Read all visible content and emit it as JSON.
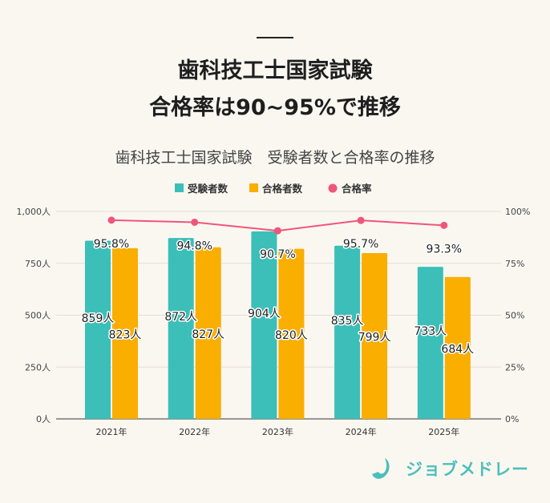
{
  "header": {
    "title_line1": "歯科技工士国家試験",
    "title_line2": "合格率は90~95%で推移"
  },
  "chart_data": {
    "type": "bar+line",
    "title": "歯科技工士国家試験　受験者数と合格率の推移",
    "categories": [
      "2021年",
      "2022年",
      "2023年",
      "2024年",
      "2025年"
    ],
    "series": [
      {
        "name": "受験者数",
        "type": "bar",
        "axis": "left",
        "color": "#3bbfb8",
        "values": [
          859,
          872,
          904,
          835,
          733
        ],
        "labels": [
          "859人",
          "872人",
          "904人",
          "835人",
          "733人"
        ]
      },
      {
        "name": "合格者数",
        "type": "bar",
        "axis": "left",
        "color": "#f9ae00",
        "values": [
          823,
          827,
          820,
          799,
          684
        ],
        "labels": [
          "823人",
          "827人",
          "820人",
          "799人",
          "684人"
        ]
      },
      {
        "name": "合格率",
        "type": "line",
        "axis": "right",
        "color": "#f0557a",
        "values": [
          95.8,
          94.8,
          90.7,
          95.7,
          93.3
        ],
        "labels": [
          "95.8%",
          "94.8%",
          "90.7%",
          "95.7%",
          "93.3%"
        ]
      }
    ],
    "left_axis": {
      "ylim": [
        0,
        1000
      ],
      "ticks": [
        "0人",
        "250人",
        "500人",
        "750人",
        "1,000人"
      ]
    },
    "right_axis": {
      "ylim": [
        0,
        100
      ],
      "ticks": [
        "0%",
        "25%",
        "50%",
        "75%",
        "100%"
      ]
    },
    "grid": true,
    "legend": "top"
  },
  "logo": {
    "text": "ジョブメドレー",
    "color": "#4bbfbb"
  }
}
